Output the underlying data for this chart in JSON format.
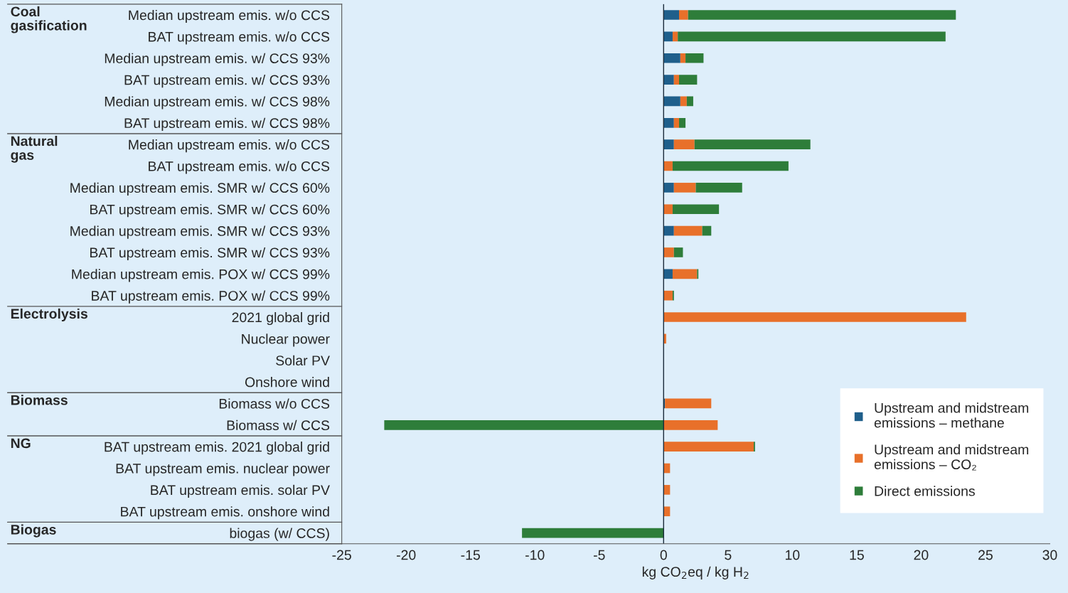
{
  "chart_data": {
    "type": "bar",
    "orientation": "horizontal",
    "stacked": true,
    "xlabel": "kg CO$_{2}$eq / kg H$_{2}$",
    "categories": [
      "Median upstream emis. w/o CCS",
      "BAT upstream emis. w/o CCS",
      "Median upstream emis. w/ CCS 93%",
      "BAT upstream emis. w/ CCS 93%",
      "Median upstream emis. w/ CCS 98%",
      "BAT upstream emis. w/ CCS 98%",
      "Median upstream emis. w/o CCS",
      "BAT upstream emis. w/o CCS",
      "Median upstream emis. SMR w/ CCS 60%",
      "BAT upstream emis. SMR w/ CCS 60%",
      "Median upstream emis. SMR w/ CCS 93%",
      "BAT upstream emis. SMR w/ CCS 93%",
      "Median upstream emis. POX w/ CCS 99%",
      "BAT upstream emis. POX w/ CCS 99%",
      "2021 global grid",
      "Nuclear power",
      "Solar PV",
      "Onshore wind",
      "Biomass w/o CCS",
      "Biomass w/ CCS",
      "BAT upstream emis. 2021 global grid",
      "BAT upstream emis. nuclear power",
      "BAT upstream emis. solar PV",
      "BAT upstream emis. onshore wind",
      "biogas (w/ CCS)"
    ],
    "series": [
      {
        "name": "Upstream and midstream\nemissions – methane",
        "color": "#1f5f8b",
        "values": [
          1.2,
          0.7,
          1.3,
          0.8,
          1.3,
          0.8,
          0.8,
          null,
          0.8,
          null,
          0.8,
          null,
          0.7,
          null,
          null,
          null,
          null,
          null,
          0.1,
          null,
          null,
          null,
          null,
          null,
          null
        ]
      },
      {
        "name": "Upstream and midstream\nemissions – CO₂",
        "color": "#e8702a",
        "values": [
          0.7,
          0.4,
          0.4,
          0.4,
          0.5,
          0.4,
          1.6,
          0.7,
          1.7,
          0.7,
          2.2,
          0.8,
          1.9,
          0.7,
          23.5,
          0.2,
          null,
          null,
          3.6,
          4.2,
          7.0,
          0.5,
          0.5,
          0.5,
          null
        ]
      },
      {
        "name": "Direct emissions",
        "color": "#2e7d3a",
        "values": [
          20.8,
          20.8,
          1.4,
          1.4,
          0.5,
          0.5,
          9.0,
          9.0,
          3.6,
          3.6,
          0.7,
          0.7,
          0.1,
          0.1,
          null,
          null,
          null,
          null,
          null,
          -21.7,
          0.1,
          null,
          null,
          null,
          -11.0
        ]
      }
    ],
    "xlim": [
      -25,
      30
    ],
    "xticks": [
      -25,
      -20,
      -15,
      -10,
      -5,
      0,
      5,
      10,
      15,
      20,
      25,
      30
    ],
    "ref_lines": [
      {
        "axis": "x",
        "value": 0,
        "color": "#1a2a3a"
      }
    ],
    "legend": "bottom right",
    "grid": false,
    "annotations": [
      "Coal\ngasification",
      "Natural\ngas",
      "Electrolysis",
      "Biomass",
      "NG",
      "Biogas"
    ]
  }
}
